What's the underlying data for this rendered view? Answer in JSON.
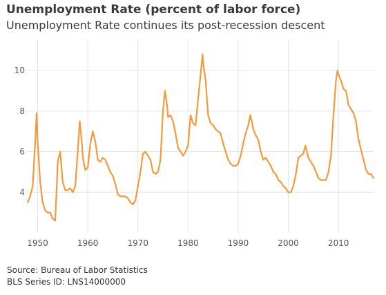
{
  "header": {
    "title": "Unemployment Rate (percent of labor force)",
    "subtitle": "Unemployment Rate continues its post-recession descent"
  },
  "footer": {
    "source": "Source: Bureau of Labor Statistics",
    "series_id": "BLS Series ID: LNS14000000"
  },
  "chart_data": {
    "type": "line",
    "title": "Unemployment Rate (percent of labor force)",
    "subtitle": "Unemployment Rate continues its post-recession descent",
    "xlabel": "",
    "ylabel": "",
    "xlim": [
      1948,
      2017
    ],
    "ylim": [
      2.0,
      11.5
    ],
    "x_ticks": [
      1950,
      1960,
      1970,
      1980,
      1990,
      2000,
      2010
    ],
    "y_ticks": [
      4,
      6,
      8,
      10
    ],
    "grid": true,
    "legend": "none",
    "line_color": "#f5993a",
    "series": [
      {
        "x": [
          1948.0,
          1948.5,
          1949.0,
          1949.5,
          1949.8,
          1950.0,
          1950.5,
          1951.0,
          1951.5,
          1952.0,
          1952.5,
          1953.0,
          1953.5,
          1953.8,
          1954.0,
          1954.5,
          1955.0,
          1955.5,
          1956.0,
          1956.5,
          1957.0,
          1957.5,
          1958.0,
          1958.4,
          1958.8,
          1959.0,
          1959.5,
          1960.0,
          1960.5,
          1961.0,
          1961.5,
          1962.0,
          1962.5,
          1963.0,
          1963.5,
          1964.0,
          1964.5,
          1965.0,
          1965.5,
          1966.0,
          1966.5,
          1967.0,
          1967.5,
          1968.0,
          1968.5,
          1969.0,
          1969.5,
          1970.0,
          1970.5,
          1971.0,
          1971.5,
          1972.0,
          1972.5,
          1973.0,
          1973.5,
          1974.0,
          1974.5,
          1975.0,
          1975.4,
          1975.8,
          1976.0,
          1976.5,
          1977.0,
          1977.5,
          1978.0,
          1978.5,
          1979.0,
          1979.5,
          1980.0,
          1980.5,
          1981.0,
          1981.5,
          1982.0,
          1982.5,
          1982.9,
          1983.0,
          1983.5,
          1984.0,
          1984.5,
          1985.0,
          1985.5,
          1986.0,
          1986.5,
          1987.0,
          1987.5,
          1988.0,
          1988.5,
          1989.0,
          1989.5,
          1990.0,
          1990.5,
          1991.0,
          1991.5,
          1992.0,
          1992.4,
          1992.8,
          1993.0,
          1993.5,
          1994.0,
          1994.5,
          1995.0,
          1995.5,
          1996.0,
          1996.5,
          1997.0,
          1997.5,
          1998.0,
          1998.5,
          1999.0,
          1999.5,
          2000.0,
          2000.5,
          2001.0,
          2001.5,
          2002.0,
          2002.5,
          2003.0,
          2003.4,
          2003.8,
          2004.0,
          2004.5,
          2005.0,
          2005.5,
          2006.0,
          2006.5,
          2007.0,
          2007.5,
          2008.0,
          2008.5,
          2009.0,
          2009.5,
          2009.8,
          2010.0,
          2010.5,
          2011.0,
          2011.5,
          2012.0,
          2012.5,
          2013.0,
          2013.5,
          2014.0,
          2014.5,
          2015.0,
          2015.5,
          2016.0,
          2016.5,
          2017.0
        ],
        "values": [
          3.5,
          3.8,
          4.3,
          6.4,
          7.9,
          6.5,
          4.5,
          3.5,
          3.1,
          3.0,
          3.0,
          2.7,
          2.6,
          4.2,
          5.5,
          6.0,
          4.5,
          4.1,
          4.1,
          4.2,
          4.0,
          4.3,
          6.0,
          7.5,
          6.5,
          5.7,
          5.1,
          5.2,
          6.4,
          7.0,
          6.5,
          5.6,
          5.5,
          5.7,
          5.6,
          5.3,
          5.0,
          4.8,
          4.4,
          3.9,
          3.8,
          3.8,
          3.8,
          3.7,
          3.5,
          3.4,
          3.6,
          4.3,
          5.0,
          5.9,
          6.0,
          5.8,
          5.6,
          5.0,
          4.9,
          5.0,
          5.6,
          8.0,
          9.0,
          8.3,
          7.7,
          7.8,
          7.5,
          6.9,
          6.2,
          6.0,
          5.8,
          6.0,
          6.3,
          7.8,
          7.4,
          7.3,
          8.6,
          9.8,
          10.8,
          10.4,
          9.5,
          7.8,
          7.4,
          7.3,
          7.1,
          7.0,
          6.9,
          6.4,
          6.0,
          5.6,
          5.4,
          5.3,
          5.3,
          5.4,
          5.8,
          6.4,
          6.9,
          7.3,
          7.8,
          7.4,
          7.1,
          6.8,
          6.6,
          6.0,
          5.6,
          5.7,
          5.5,
          5.3,
          5.0,
          4.9,
          4.6,
          4.5,
          4.3,
          4.2,
          4.0,
          4.0,
          4.3,
          4.9,
          5.7,
          5.8,
          5.9,
          6.3,
          5.9,
          5.7,
          5.5,
          5.3,
          5.0,
          4.7,
          4.6,
          4.6,
          4.6,
          5.0,
          5.8,
          7.8,
          9.5,
          10.0,
          9.8,
          9.5,
          9.1,
          9.0,
          8.3,
          8.1,
          7.9,
          7.5,
          6.6,
          6.1,
          5.6,
          5.1,
          4.9,
          4.9,
          4.7
        ]
      }
    ]
  }
}
